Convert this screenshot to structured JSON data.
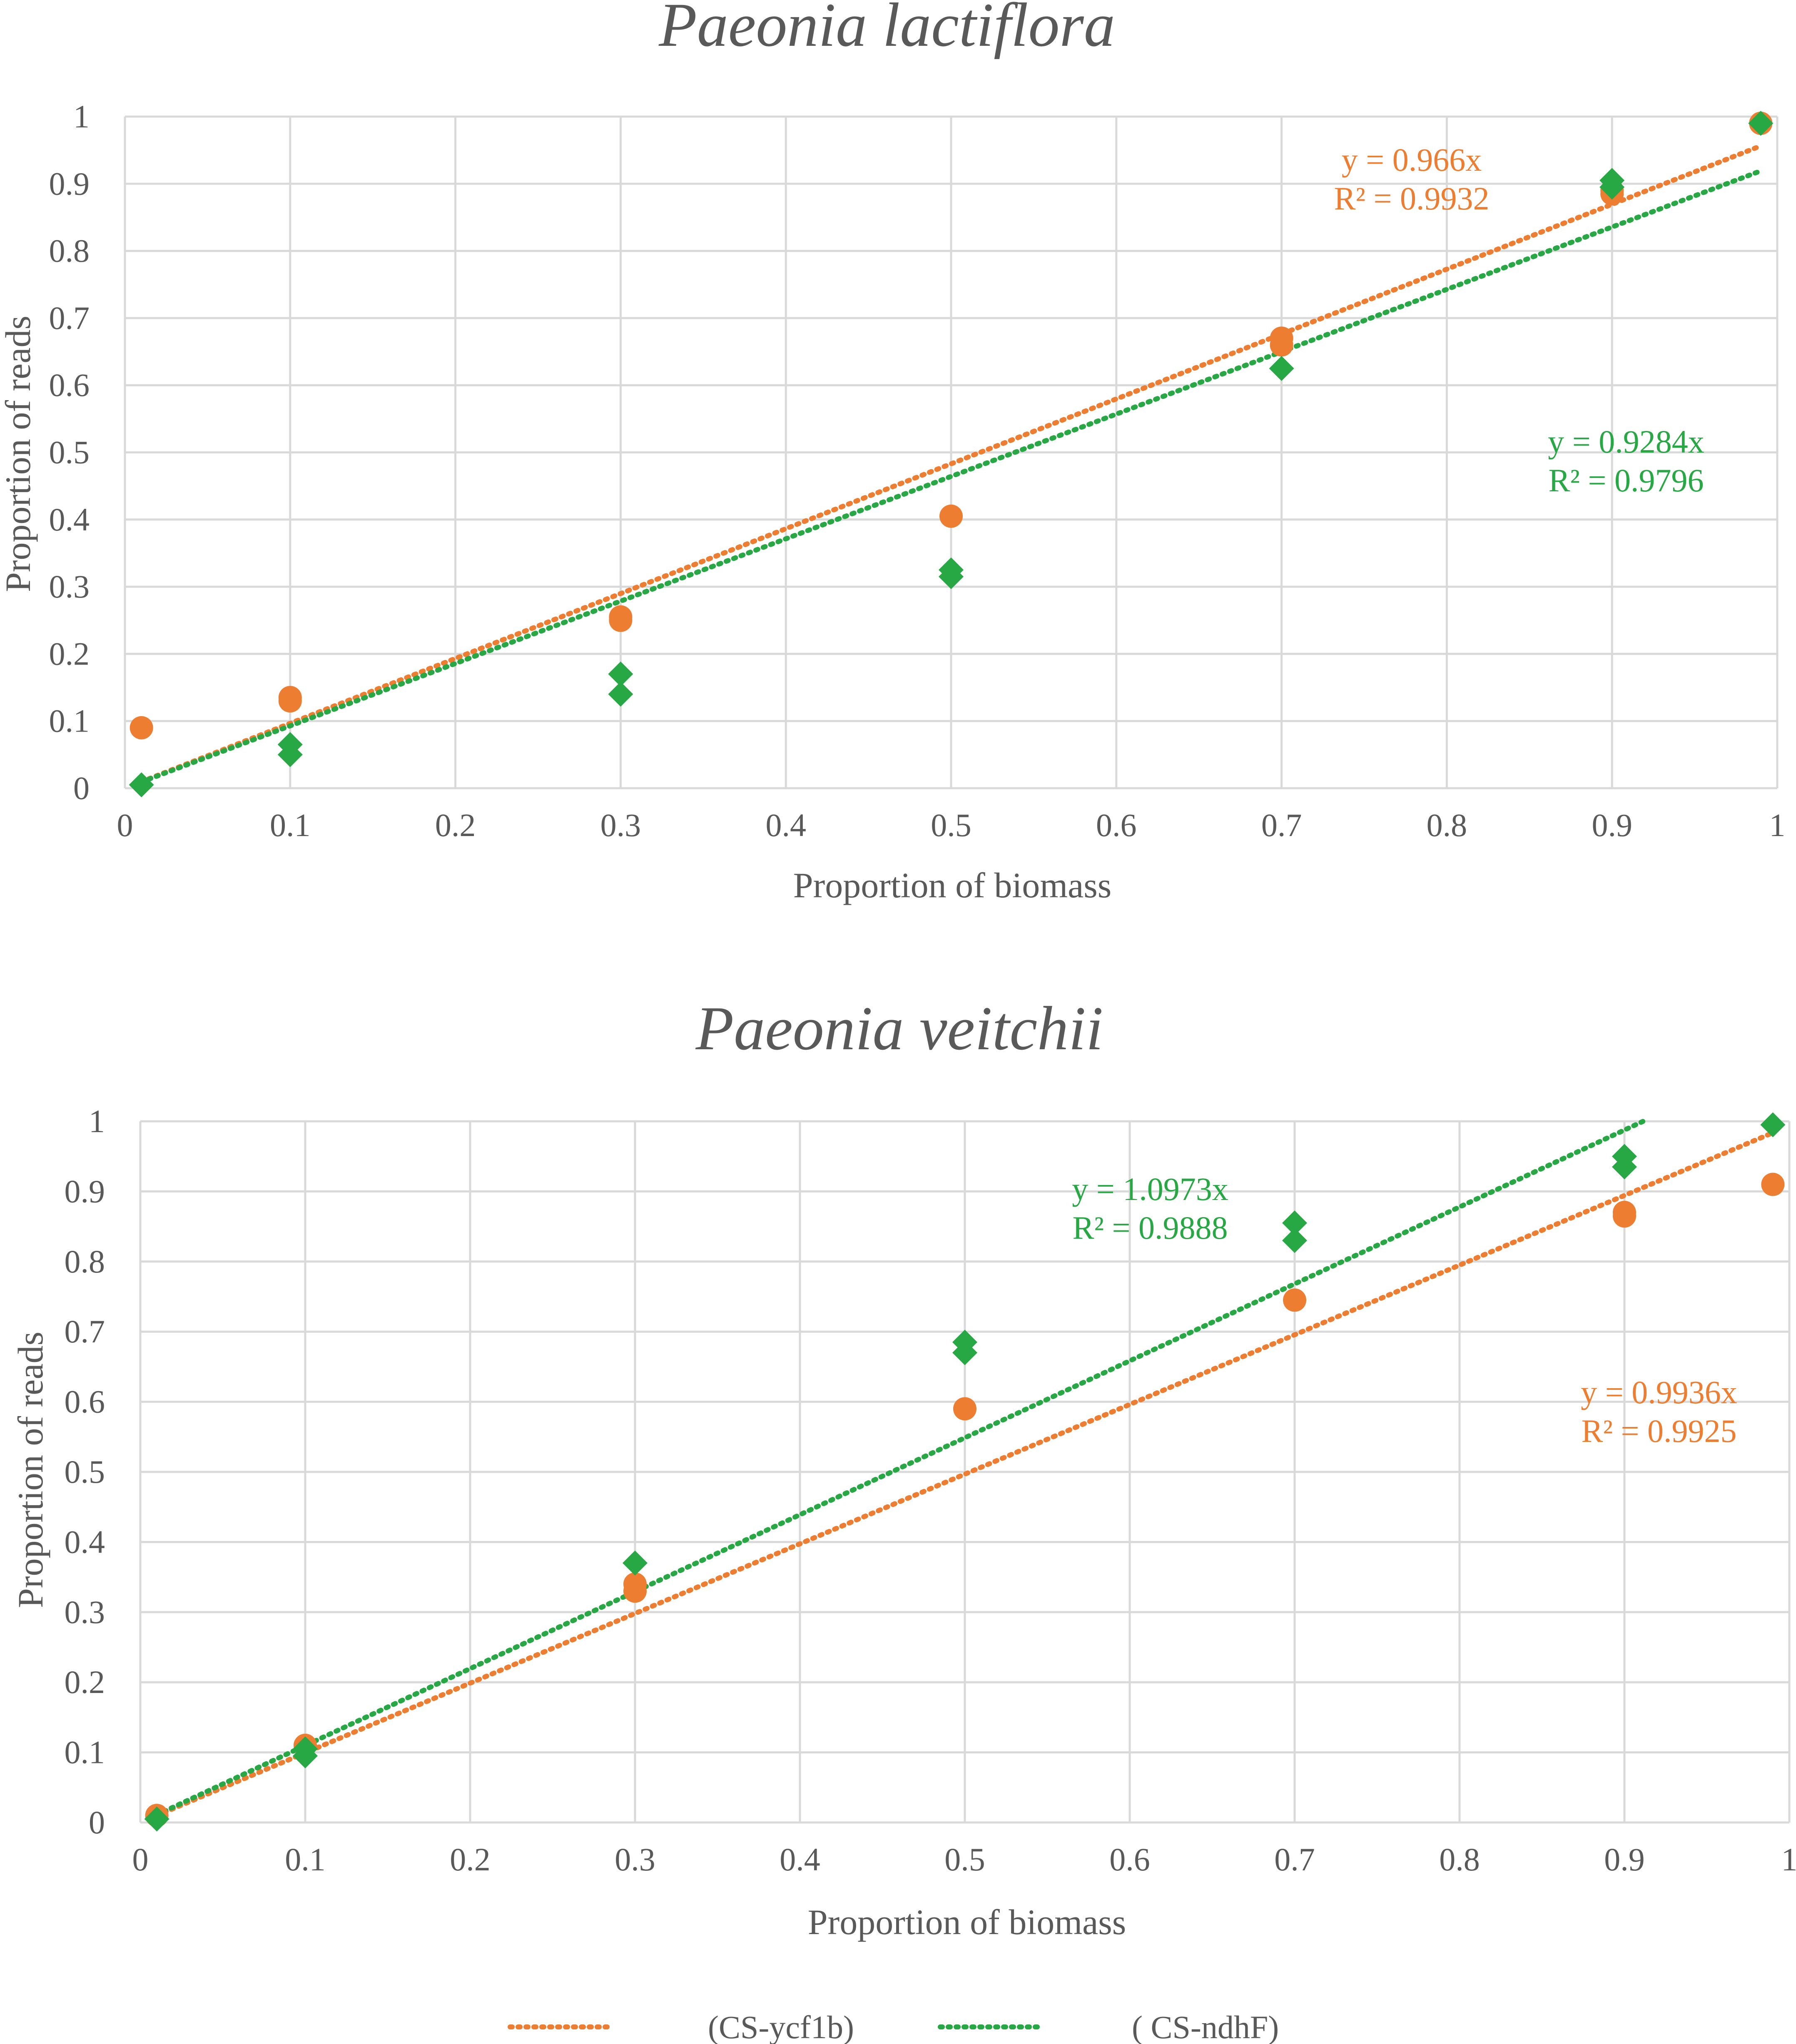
{
  "colors": {
    "ycf1b": "#ED7D31",
    "ndhF": "#28A745",
    "text": "#595959",
    "grid": "#D9D9D9"
  },
  "chart_data": [
    {
      "type": "scatter",
      "title": "Paeonia lactiflora",
      "xlabel": "Proportion of biomass",
      "ylabel": "Proportion of reads",
      "xlim": [
        0,
        1
      ],
      "ylim": [
        0,
        1
      ],
      "xticks": [
        "0",
        "0.1",
        "0.2",
        "0.3",
        "0.4",
        "0.5",
        "0.6",
        "0.7",
        "0.8",
        "0.9",
        "1"
      ],
      "yticks": [
        "0",
        "0.1",
        "0.2",
        "0.3",
        "0.4",
        "0.5",
        "0.6",
        "0.7",
        "0.8",
        "0.9",
        "1"
      ],
      "series": [
        {
          "name": "(CS-ycf1b)",
          "key": "ycf1b",
          "marker": "circle",
          "x": [
            0.01,
            0.1,
            0.1,
            0.3,
            0.3,
            0.5,
            0.7,
            0.7,
            0.9,
            0.9,
            0.99
          ],
          "y": [
            0.09,
            0.13,
            0.135,
            0.25,
            0.255,
            0.405,
            0.66,
            0.67,
            0.885,
            0.89,
            0.99
          ],
          "trend_slope": 0.966,
          "equation": "y = 0.966x",
          "r2": "R² = 0.9932"
        },
        {
          "name": "( CS-ndhF)",
          "key": "ndhF",
          "marker": "diamond",
          "x": [
            0.01,
            0.1,
            0.1,
            0.3,
            0.3,
            0.5,
            0.5,
            0.7,
            0.9,
            0.9,
            0.99
          ],
          "y": [
            0.005,
            0.05,
            0.065,
            0.14,
            0.17,
            0.315,
            0.325,
            0.625,
            0.895,
            0.905,
            0.99
          ],
          "trend_slope": 0.9284,
          "equation": "y = 0.9284x",
          "r2": "R² = 0.9796"
        }
      ]
    },
    {
      "type": "scatter",
      "title": "Paeonia veitchii",
      "xlabel": "Proportion of biomass",
      "ylabel": "Proportion of reads",
      "xlim": [
        0,
        1
      ],
      "ylim": [
        0,
        1
      ],
      "xticks": [
        "0",
        "0.1",
        "0.2",
        "0.3",
        "0.4",
        "0.5",
        "0.6",
        "0.7",
        "0.8",
        "0.9",
        "1"
      ],
      "yticks": [
        "0",
        "0.1",
        "0.2",
        "0.3",
        "0.4",
        "0.5",
        "0.6",
        "0.7",
        "0.8",
        "0.9",
        "1"
      ],
      "series": [
        {
          "name": "(CS-ycf1b)",
          "key": "ycf1b",
          "marker": "circle",
          "x": [
            0.01,
            0.1,
            0.3,
            0.3,
            0.5,
            0.7,
            0.9,
            0.9,
            0.99
          ],
          "y": [
            0.01,
            0.11,
            0.33,
            0.34,
            0.59,
            0.745,
            0.865,
            0.87,
            0.91
          ],
          "trend_slope": 0.9936,
          "equation": "y = 0.9936x",
          "r2": "R² = 0.9925"
        },
        {
          "name": "( CS-ndhF)",
          "key": "ndhF",
          "marker": "diamond",
          "x": [
            0.01,
            0.1,
            0.1,
            0.3,
            0.5,
            0.5,
            0.7,
            0.7,
            0.9,
            0.9,
            0.99
          ],
          "y": [
            0.005,
            0.095,
            0.105,
            0.37,
            0.67,
            0.685,
            0.83,
            0.855,
            0.935,
            0.95,
            0.995
          ],
          "trend_slope": 1.0973,
          "equation": "y = 1.0973x",
          "r2": "R² = 0.9888"
        }
      ]
    }
  ],
  "legend": [
    {
      "key": "ycf1b",
      "label": "(CS-ycf1b)"
    },
    {
      "key": "ndhF",
      "label": "( CS-ndhF)"
    }
  ]
}
